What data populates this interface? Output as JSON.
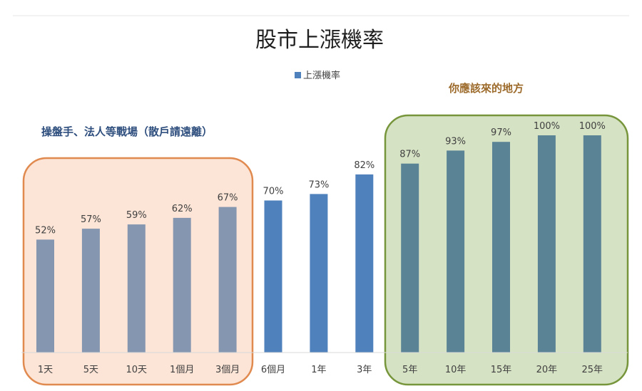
{
  "chart_data": {
    "type": "bar",
    "title": "股市上漲機率",
    "legend": {
      "label": "上漲機率",
      "position": "top-center"
    },
    "categories": [
      "1天",
      "5天",
      "10天",
      "1個月",
      "3個月",
      "6個月",
      "1年",
      "3年",
      "5年",
      "10年",
      "15年",
      "20年",
      "25年"
    ],
    "series": [
      {
        "name": "上漲機率",
        "values": [
          52,
          57,
          59,
          62,
          67,
          70,
          73,
          82,
          87,
          93,
          97,
          100,
          100
        ],
        "labels": [
          "52%",
          "57%",
          "59%",
          "62%",
          "67%",
          "70%",
          "73%",
          "82%",
          "87%",
          "93%",
          "97%",
          "100%",
          "100%"
        ]
      }
    ],
    "ylim": [
      0,
      130
    ],
    "grid": false,
    "xlabel": "",
    "ylabel": ""
  },
  "annotations": {
    "left_group_label": "操盤手、法人等戰場（散戶請遠離）",
    "right_group_label": "你應該來的地方"
  },
  "colors": {
    "short_term_bar": "#8496b0",
    "mid_term_bar": "#4f81bd",
    "long_term_bar": "#5b8396",
    "left_box_fill": "#fce4d6",
    "left_box_stroke": "#e08a4f",
    "right_box_fill": "#d6e2c4",
    "right_box_stroke": "#77963c",
    "left_label": "#2e4e7e",
    "right_label": "#9c6a2a",
    "legend_swatch": "#4f81bd",
    "text": "#404040"
  }
}
